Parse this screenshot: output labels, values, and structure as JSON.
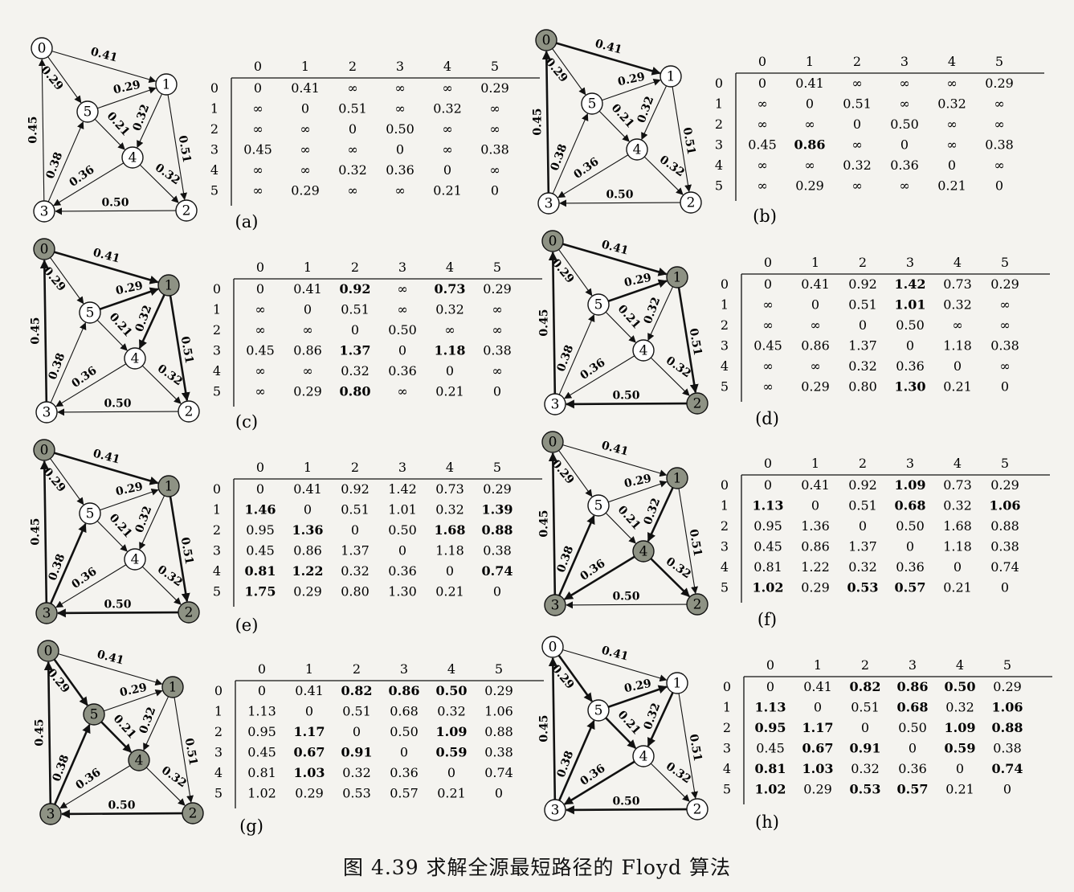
{
  "caption": "图 4.39   求解全源最短路径的 Floyd 算法",
  "node_ids": [
    "0",
    "1",
    "2",
    "3",
    "4",
    "5"
  ],
  "colors": {
    "highlight_node": "#8e9284",
    "plain_node": "#ffffff",
    "ink": "#111111"
  },
  "edges": [
    {
      "from": "0",
      "to": "1",
      "weight": "0.41"
    },
    {
      "from": "0",
      "to": "5",
      "weight": "0.29"
    },
    {
      "from": "5",
      "to": "1",
      "weight": "0.29"
    },
    {
      "from": "5",
      "to": "4",
      "weight": "0.21"
    },
    {
      "from": "1",
      "to": "4",
      "weight": "0.32"
    },
    {
      "from": "1",
      "to": "2",
      "weight": "0.51"
    },
    {
      "from": "4",
      "to": "2",
      "weight": "0.32"
    },
    {
      "from": "4",
      "to": "3",
      "weight": "0.36"
    },
    {
      "from": "3",
      "to": "5",
      "weight": "0.38"
    },
    {
      "from": "3",
      "to": "0",
      "weight": "0.45"
    },
    {
      "from": "2",
      "to": "3",
      "weight": "0.50"
    }
  ],
  "panels": [
    {
      "label": "(a)",
      "highlighted_nodes": [],
      "bold_edges": [],
      "matrix": [
        [
          "0",
          "0.41",
          "∞",
          "∞",
          "∞",
          "0.29"
        ],
        [
          "∞",
          "0",
          "0.51",
          "∞",
          "0.32",
          "∞"
        ],
        [
          "∞",
          "∞",
          "0",
          "0.50",
          "∞",
          "∞"
        ],
        [
          "0.45",
          "∞",
          "∞",
          "0",
          "∞",
          "0.38"
        ],
        [
          "∞",
          "∞",
          "0.32",
          "0.36",
          "0",
          "∞"
        ],
        [
          "∞",
          "0.29",
          "∞",
          "∞",
          "0.21",
          "0"
        ]
      ],
      "bold_cells": []
    },
    {
      "label": "(b)",
      "highlighted_nodes": [
        "0"
      ],
      "bold_edges": [
        0,
        9
      ],
      "matrix": [
        [
          "0",
          "0.41",
          "∞",
          "∞",
          "∞",
          "0.29"
        ],
        [
          "∞",
          "0",
          "0.51",
          "∞",
          "0.32",
          "∞"
        ],
        [
          "∞",
          "∞",
          "0",
          "0.50",
          "∞",
          "∞"
        ],
        [
          "0.45",
          "0.86",
          "∞",
          "0",
          "∞",
          "0.38"
        ],
        [
          "∞",
          "∞",
          "0.32",
          "0.36",
          "0",
          "∞"
        ],
        [
          "∞",
          "0.29",
          "∞",
          "∞",
          "0.21",
          "0"
        ]
      ],
      "bold_cells": [
        [
          3,
          1
        ]
      ]
    },
    {
      "label": "(c)",
      "highlighted_nodes": [
        "0",
        "1"
      ],
      "bold_edges": [
        0,
        2,
        4,
        5,
        9
      ],
      "matrix": [
        [
          "0",
          "0.41",
          "0.92",
          "∞",
          "0.73",
          "0.29"
        ],
        [
          "∞",
          "0",
          "0.51",
          "∞",
          "0.32",
          "∞"
        ],
        [
          "∞",
          "∞",
          "0",
          "0.50",
          "∞",
          "∞"
        ],
        [
          "0.45",
          "0.86",
          "1.37",
          "0",
          "1.18",
          "0.38"
        ],
        [
          "∞",
          "∞",
          "0.32",
          "0.36",
          "0",
          "∞"
        ],
        [
          "∞",
          "0.29",
          "0.80",
          "∞",
          "0.21",
          "0"
        ]
      ],
      "bold_cells": [
        [
          0,
          2
        ],
        [
          0,
          4
        ],
        [
          3,
          2
        ],
        [
          3,
          4
        ],
        [
          5,
          2
        ]
      ]
    },
    {
      "label": "(d)",
      "highlighted_nodes": [
        "0",
        "1",
        "2"
      ],
      "bold_edges": [
        0,
        2,
        5,
        9,
        10
      ],
      "matrix": [
        [
          "0",
          "0.41",
          "0.92",
          "1.42",
          "0.73",
          "0.29"
        ],
        [
          "∞",
          "0",
          "0.51",
          "1.01",
          "0.32",
          "∞"
        ],
        [
          "∞",
          "∞",
          "0",
          "0.50",
          "∞",
          "∞"
        ],
        [
          "0.45",
          "0.86",
          "1.37",
          "0",
          "1.18",
          "0.38"
        ],
        [
          "∞",
          "∞",
          "0.32",
          "0.36",
          "0",
          "∞"
        ],
        [
          "∞",
          "0.29",
          "0.80",
          "1.30",
          "0.21",
          "0"
        ]
      ],
      "bold_cells": [
        [
          0,
          3
        ],
        [
          1,
          3
        ],
        [
          5,
          3
        ]
      ]
    },
    {
      "label": "(e)",
      "highlighted_nodes": [
        "0",
        "1",
        "2",
        "3"
      ],
      "bold_edges": [
        0,
        5,
        8,
        9,
        10
      ],
      "matrix": [
        [
          "0",
          "0.41",
          "0.92",
          "1.42",
          "0.73",
          "0.29"
        ],
        [
          "1.46",
          "0",
          "0.51",
          "1.01",
          "0.32",
          "1.39"
        ],
        [
          "0.95",
          "1.36",
          "0",
          "0.50",
          "1.68",
          "0.88"
        ],
        [
          "0.45",
          "0.86",
          "1.37",
          "0",
          "1.18",
          "0.38"
        ],
        [
          "0.81",
          "1.22",
          "0.32",
          "0.36",
          "0",
          "0.74"
        ],
        [
          "1.75",
          "0.29",
          "0.80",
          "1.30",
          "0.21",
          "0"
        ]
      ],
      "bold_cells": [
        [
          1,
          0
        ],
        [
          1,
          5
        ],
        [
          2,
          1
        ],
        [
          2,
          4
        ],
        [
          2,
          5
        ],
        [
          4,
          0
        ],
        [
          4,
          1
        ],
        [
          4,
          5
        ],
        [
          5,
          0
        ]
      ]
    },
    {
      "label": "(f)",
      "highlighted_nodes": [
        "0",
        "1",
        "2",
        "3",
        "4"
      ],
      "bold_edges": [
        4,
        6,
        7,
        8,
        9
      ],
      "matrix": [
        [
          "0",
          "0.41",
          "0.92",
          "1.09",
          "0.73",
          "0.29"
        ],
        [
          "1.13",
          "0",
          "0.51",
          "0.68",
          "0.32",
          "1.06"
        ],
        [
          "0.95",
          "1.36",
          "0",
          "0.50",
          "1.68",
          "0.88"
        ],
        [
          "0.45",
          "0.86",
          "1.37",
          "0",
          "1.18",
          "0.38"
        ],
        [
          "0.81",
          "1.22",
          "0.32",
          "0.36",
          "0",
          "0.74"
        ],
        [
          "1.02",
          "0.29",
          "0.53",
          "0.57",
          "0.21",
          "0"
        ]
      ],
      "bold_cells": [
        [
          0,
          3
        ],
        [
          1,
          0
        ],
        [
          1,
          3
        ],
        [
          1,
          5
        ],
        [
          5,
          0
        ],
        [
          5,
          2
        ],
        [
          5,
          3
        ]
      ]
    },
    {
      "label": "(g)",
      "highlighted_nodes": [
        "0",
        "1",
        "2",
        "3",
        "4",
        "5"
      ],
      "bold_edges": [
        1,
        3,
        8,
        9,
        10
      ],
      "matrix": [
        [
          "0",
          "0.41",
          "0.82",
          "0.86",
          "0.50",
          "0.29"
        ],
        [
          "1.13",
          "0",
          "0.51",
          "0.68",
          "0.32",
          "1.06"
        ],
        [
          "0.95",
          "1.17",
          "0",
          "0.50",
          "1.09",
          "0.88"
        ],
        [
          "0.45",
          "0.67",
          "0.91",
          "0",
          "0.59",
          "0.38"
        ],
        [
          "0.81",
          "1.03",
          "0.32",
          "0.36",
          "0",
          "0.74"
        ],
        [
          "1.02",
          "0.29",
          "0.53",
          "0.57",
          "0.21",
          "0"
        ]
      ],
      "bold_cells": [
        [
          0,
          2
        ],
        [
          0,
          3
        ],
        [
          0,
          4
        ],
        [
          2,
          1
        ],
        [
          2,
          4
        ],
        [
          3,
          1
        ],
        [
          3,
          2
        ],
        [
          3,
          4
        ],
        [
          4,
          1
        ]
      ]
    },
    {
      "label": "(h)",
      "highlighted_nodes": [],
      "bold_edges": [
        1,
        2,
        3,
        4,
        7,
        8,
        9,
        10
      ],
      "matrix": [
        [
          "0",
          "0.41",
          "0.82",
          "0.86",
          "0.50",
          "0.29"
        ],
        [
          "1.13",
          "0",
          "0.51",
          "0.68",
          "0.32",
          "1.06"
        ],
        [
          "0.95",
          "1.17",
          "0",
          "0.50",
          "1.09",
          "0.88"
        ],
        [
          "0.45",
          "0.67",
          "0.91",
          "0",
          "0.59",
          "0.38"
        ],
        [
          "0.81",
          "1.03",
          "0.32",
          "0.36",
          "0",
          "0.74"
        ],
        [
          "1.02",
          "0.29",
          "0.53",
          "0.57",
          "0.21",
          "0"
        ]
      ],
      "bold_cells": [
        [
          0,
          2
        ],
        [
          0,
          3
        ],
        [
          0,
          4
        ],
        [
          1,
          0
        ],
        [
          1,
          3
        ],
        [
          1,
          5
        ],
        [
          2,
          0
        ],
        [
          2,
          1
        ],
        [
          2,
          4
        ],
        [
          2,
          5
        ],
        [
          3,
          1
        ],
        [
          3,
          2
        ],
        [
          3,
          4
        ],
        [
          4,
          0
        ],
        [
          4,
          1
        ],
        [
          4,
          5
        ],
        [
          5,
          0
        ],
        [
          5,
          2
        ],
        [
          5,
          3
        ]
      ]
    }
  ]
}
